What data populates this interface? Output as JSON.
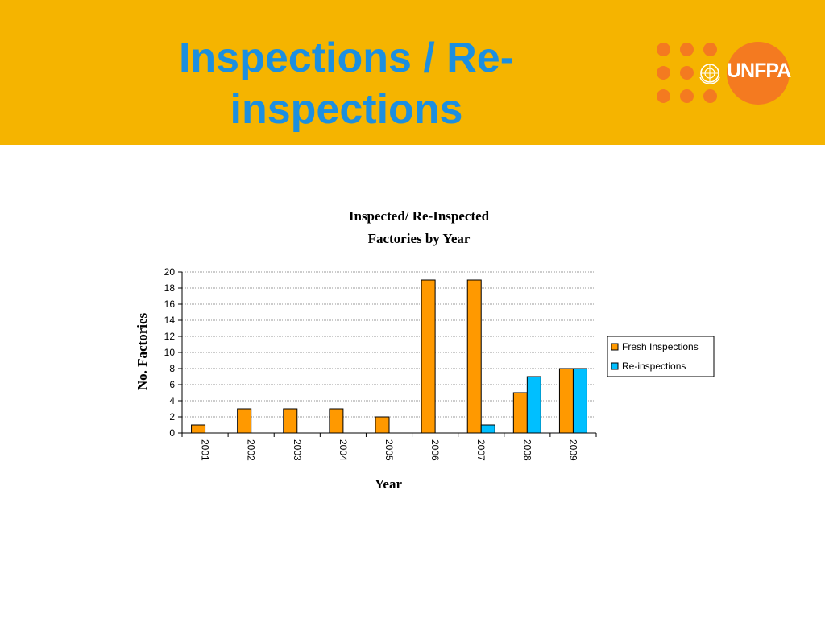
{
  "slide": {
    "title_lines": [
      "Inspections / Re-",
      "inspections"
    ],
    "header_color": "#F5B400",
    "title_color": "#1C8FE0"
  },
  "logo": {
    "text": "UNFPA",
    "color": "#F47A20",
    "icon": "un-emblem-icon"
  },
  "chart_data": {
    "type": "bar",
    "title_lines": [
      "Inspected/ Re-Inspected",
      "Factories by Year"
    ],
    "xlabel": "Year",
    "ylabel": "No. Factories",
    "ylim": [
      0,
      20
    ],
    "yticks": [
      0,
      2,
      4,
      6,
      8,
      10,
      12,
      14,
      16,
      18,
      20
    ],
    "categories": [
      "2001",
      "2002",
      "2003",
      "2004",
      "2005",
      "2006",
      "2007",
      "2008",
      "2009"
    ],
    "series": [
      {
        "name": "Fresh Inspections",
        "color": "#FF9900",
        "values": [
          1,
          3,
          3,
          3,
          2,
          19,
          19,
          5,
          8
        ]
      },
      {
        "name": "Re-inspections",
        "color": "#00BFFF",
        "values": [
          0,
          0,
          0,
          0,
          0,
          0,
          1,
          7,
          8
        ]
      }
    ],
    "grid": true,
    "legend_position": "right"
  }
}
